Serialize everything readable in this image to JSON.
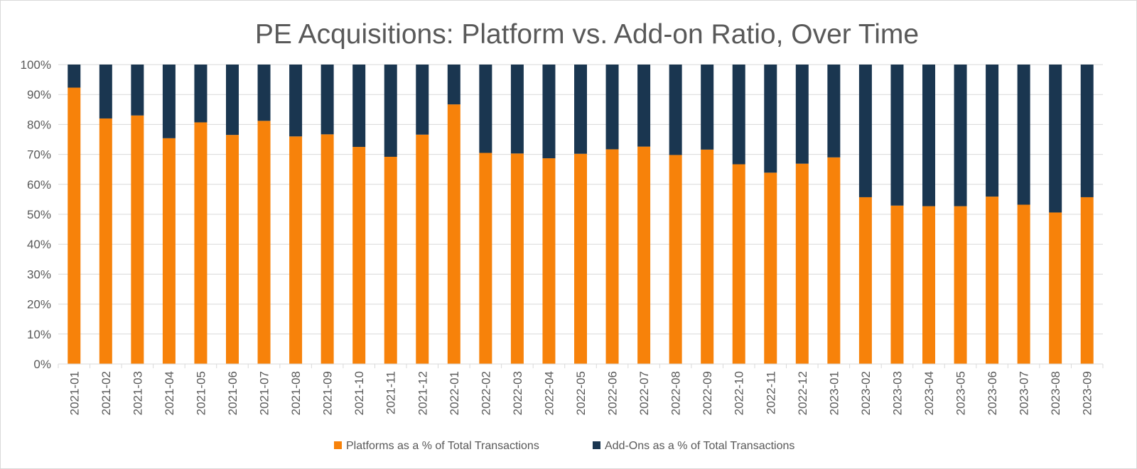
{
  "chart_data": {
    "type": "bar",
    "stacked": true,
    "title": "PE Acquisitions: Platform vs. Add-on Ratio, Over Time",
    "xlabel": "",
    "ylabel": "",
    "ylim": [
      0,
      100
    ],
    "y_ticks": [
      "0%",
      "10%",
      "20%",
      "30%",
      "40%",
      "50%",
      "60%",
      "70%",
      "80%",
      "90%",
      "100%"
    ],
    "categories": [
      "2021-01",
      "2021-02",
      "2021-03",
      "2021-04",
      "2021-05",
      "2021-06",
      "2021-07",
      "2021-08",
      "2021-09",
      "2021-10",
      "2021-11",
      "2021-12",
      "2022-01",
      "2022-02",
      "2022-03",
      "2022-04",
      "2022-05",
      "2022-06",
      "2022-07",
      "2022-08",
      "2022-09",
      "2022-10",
      "2022-11",
      "2022-12",
      "2023-01",
      "2023-02",
      "2023-03",
      "2023-04",
      "2023-05",
      "2023-06",
      "2023-07",
      "2023-08",
      "2023-09"
    ],
    "series": [
      {
        "name": "Platforms as a % of Total Transactions",
        "color": "#F7820A",
        "values": [
          92.3,
          82.0,
          83.0,
          75.4,
          80.7,
          76.5,
          81.2,
          76.0,
          76.7,
          72.5,
          69.2,
          76.6,
          86.7,
          70.5,
          70.3,
          68.7,
          70.2,
          71.7,
          72.6,
          69.8,
          71.6,
          66.7,
          63.9,
          66.9,
          69.0,
          55.7,
          52.9,
          52.7,
          52.7,
          55.9,
          53.2,
          50.6,
          55.7
        ]
      },
      {
        "name": "Add-Ons as a % of Total Transactions",
        "color": "#1A3650",
        "values": [
          7.7,
          18.0,
          17.0,
          24.6,
          19.3,
          23.5,
          18.8,
          24.0,
          23.3,
          27.5,
          30.8,
          23.4,
          13.3,
          29.5,
          29.7,
          31.3,
          29.8,
          28.3,
          27.4,
          30.2,
          28.4,
          33.3,
          36.1,
          33.1,
          31.0,
          44.3,
          47.1,
          47.3,
          47.3,
          44.1,
          46.8,
          49.4,
          44.3
        ]
      }
    ],
    "legend_position": "bottom-center",
    "grid": true
  }
}
